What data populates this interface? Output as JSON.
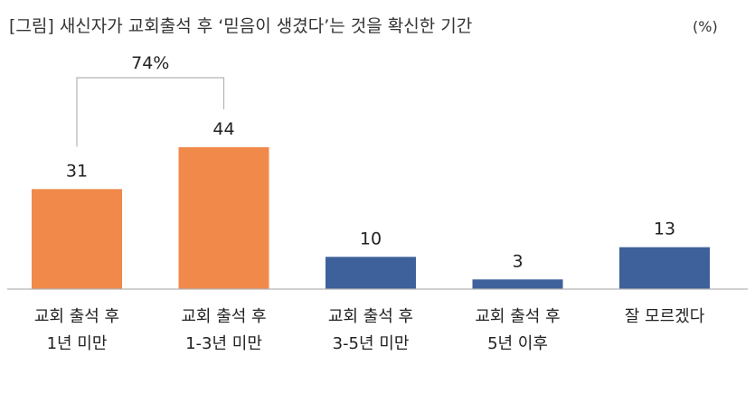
{
  "chart_data": {
    "type": "bar",
    "title": "[그림] 새신자가 교회출석 후 ‘믿음이 생겼다’는 것을 확신한 기간",
    "unit": "(%)",
    "categories": [
      [
        "교회 출석 후",
        "1년 미만"
      ],
      [
        "교회 출석 후",
        "1-3년 미만"
      ],
      [
        "교회 출석 후",
        "3-5년 미만"
      ],
      [
        "교회 출석 후",
        "5년 이후"
      ],
      [
        "잘 모르겠다"
      ]
    ],
    "values": [
      31,
      44,
      10,
      3,
      13
    ],
    "value_labels": [
      "31",
      "44",
      "10",
      "3",
      "13"
    ],
    "colors": [
      "#F0894A",
      "#F0894A",
      "#3F619B",
      "#3F619B",
      "#3F619B"
    ],
    "ylim": [
      0,
      50
    ],
    "grid": false,
    "annotation": {
      "label": "74%",
      "from_index": 0,
      "to_index": 1
    }
  }
}
